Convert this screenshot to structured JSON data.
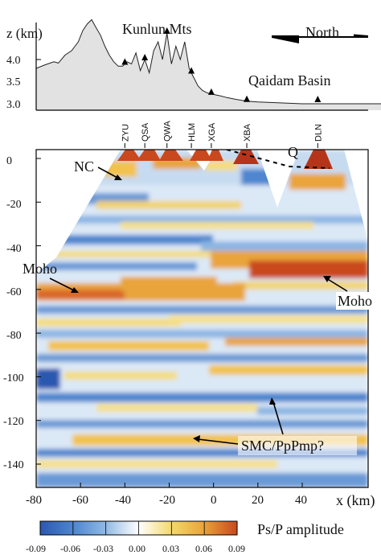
{
  "corner_text": "",
  "topo": {
    "ylabel": "z (km)",
    "yticks": [
      "4.0",
      "3.5",
      "3.0"
    ],
    "label_kunlun": "Kunlun Mts",
    "label_qaidam": "Qaidam Basin",
    "north_label": "North",
    "profile_km": [
      [
        -80,
        3.8
      ],
      [
        -76,
        3.88
      ],
      [
        -72,
        3.95
      ],
      [
        -70,
        3.92
      ],
      [
        -67,
        4.1
      ],
      [
        -64,
        4.2
      ],
      [
        -61,
        4.4
      ],
      [
        -59,
        4.65
      ],
      [
        -57,
        4.8
      ],
      [
        -55,
        4.9
      ],
      [
        -53,
        4.72
      ],
      [
        -51,
        4.55
      ],
      [
        -49,
        4.3
      ],
      [
        -47,
        4.1
      ],
      [
        -45,
        3.95
      ],
      [
        -43,
        3.85
      ],
      [
        -41,
        3.85
      ],
      [
        -39,
        3.95
      ],
      [
        -37,
        3.9
      ],
      [
        -35,
        4.15
      ],
      [
        -33,
        3.75
      ],
      [
        -31,
        4.0
      ],
      [
        -29,
        3.7
      ],
      [
        -27,
        4.2
      ],
      [
        -25,
        4.4
      ],
      [
        -23,
        4.0
      ],
      [
        -21,
        4.6
      ],
      [
        -19,
        3.9
      ],
      [
        -17,
        4.3
      ],
      [
        -15,
        4.0
      ],
      [
        -13,
        4.4
      ],
      [
        -11,
        3.8
      ],
      [
        -9,
        3.6
      ],
      [
        -7,
        3.4
      ],
      [
        -5,
        3.3
      ],
      [
        -3,
        3.25
      ],
      [
        -1,
        3.22
      ],
      [
        1,
        3.2
      ],
      [
        3,
        3.18
      ],
      [
        6,
        3.14
      ],
      [
        10,
        3.1
      ],
      [
        15,
        3.06
      ],
      [
        20,
        3.04
      ],
      [
        30,
        3.02
      ],
      [
        40,
        3.0
      ],
      [
        50,
        3.0
      ],
      [
        60,
        3.0
      ],
      [
        70,
        3.0
      ],
      [
        76,
        3.0
      ]
    ],
    "stations": [
      {
        "name": "ZYU",
        "x_km": -40
      },
      {
        "name": "QSA",
        "x_km": -31
      },
      {
        "name": "QWA",
        "x_km": -21
      },
      {
        "name": "HLM",
        "x_km": -10
      },
      {
        "name": "XGA",
        "x_km": -1
      },
      {
        "name": "XBA",
        "x_km": 15
      },
      {
        "name": "DLN",
        "x_km": 47
      }
    ]
  },
  "section": {
    "yticks": [
      "0",
      "-20",
      "-40",
      "-60",
      "-80",
      "-100",
      "-120",
      "-140"
    ],
    "xticks": [
      "-80",
      "-60",
      "-40",
      "-20",
      "0",
      "20",
      "40"
    ],
    "xlabel": "x (km)",
    "annotations": {
      "nc": "NC",
      "q": "Q",
      "moho_left": "Moho",
      "moho_right": "Moho",
      "smc": "SMC/PpPmp?"
    }
  },
  "colorbar": {
    "title": "Ps/P amplitude",
    "ticks": [
      "-0.09",
      "-0.06",
      "-0.03",
      "0.00",
      "0.03",
      "0.06",
      "0.09"
    ],
    "colors": [
      "#2a58b0",
      "#4f86cf",
      "#8fb9e4",
      "#ffffff",
      "#f4d86a",
      "#e9a43a",
      "#c9481e"
    ]
  },
  "chart_data": {
    "type": "heatmap",
    "x_range_km": [
      -80,
      76
    ],
    "z_range_km": [
      -150,
      5
    ],
    "value_range": [
      -0.09,
      0.09
    ],
    "value_label": "Ps/P amplitude",
    "xlabel": "x (km)",
    "topo_ylabel": "z (km)",
    "bands": [
      {
        "depth_km": -62,
        "from_x": -80,
        "to_x": 20,
        "value": 0.07
      },
      {
        "depth_km": -52,
        "from_x": 0,
        "to_x": 76,
        "value": 0.08
      },
      {
        "depth_km": -90,
        "from_x": -80,
        "to_x": 76,
        "value": 0.04
      },
      {
        "depth_km": -135,
        "from_x": -70,
        "to_x": 76,
        "value": 0.04
      },
      {
        "depth_km": -100,
        "from_x": -80,
        "to_x": -55,
        "value": -0.08
      }
    ]
  }
}
